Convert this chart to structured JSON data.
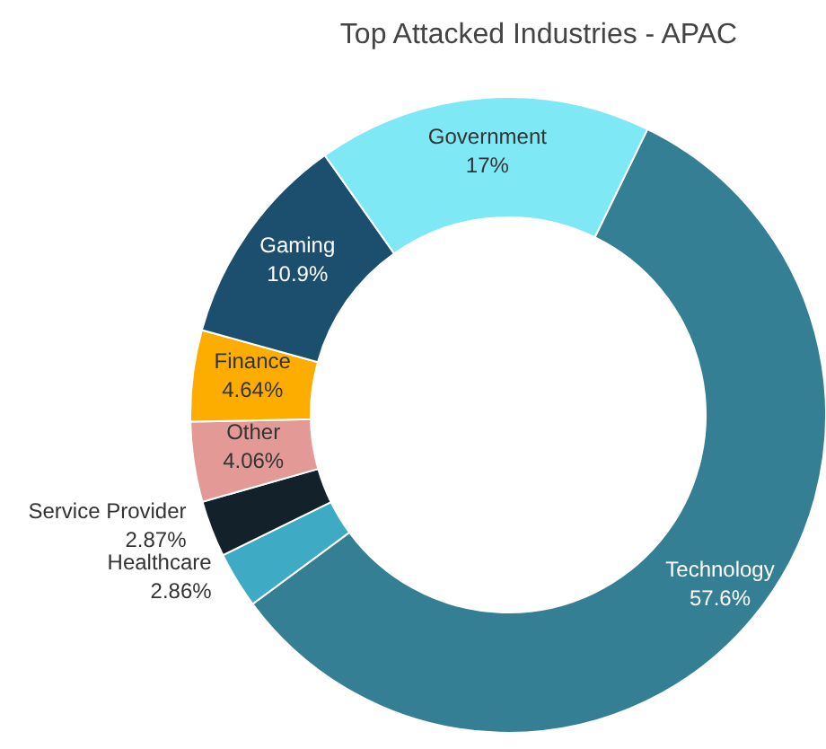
{
  "chart_data": {
    "type": "donut",
    "title": "Top Attacked Industries - APAC",
    "categories": [
      "Technology",
      "Healthcare",
      "Service Provider",
      "Other",
      "Finance",
      "Gaming",
      "Government"
    ],
    "values": [
      57.6,
      2.86,
      2.87,
      4.06,
      4.64,
      10.9,
      17
    ],
    "colors": [
      "#357f94",
      "#3eaac4",
      "#13212b",
      "#e39a96",
      "#fdad00",
      "#1c4f6e",
      "#7ee8f5"
    ],
    "value_labels": [
      "57.6%",
      "2.86%",
      "2.87%",
      "4.06%",
      "4.64%",
      "10.9%",
      "17%"
    ]
  }
}
